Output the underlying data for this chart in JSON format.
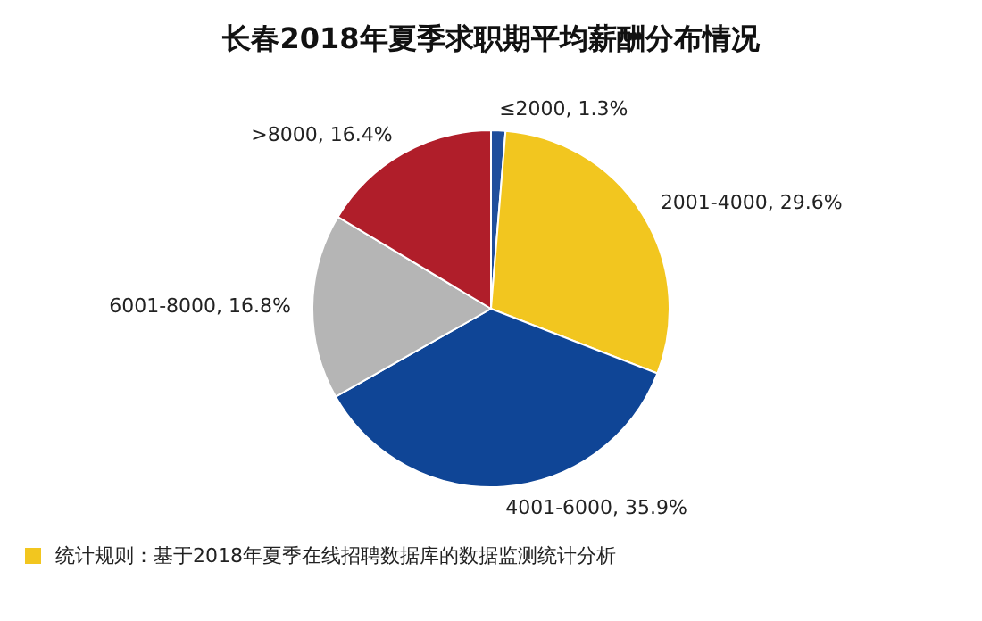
{
  "chart_data": {
    "type": "pie",
    "title": "长春2018年夏季求职期平均薪酬分布情况",
    "categories": [
      "≤2000",
      "2001-4000",
      "4001-6000",
      "6001-8000",
      ">8000"
    ],
    "values": [
      1.3,
      29.6,
      35.9,
      16.8,
      16.4
    ],
    "value_labels": [
      "1.3%",
      "29.6%",
      "35.9%",
      "16.8%",
      "16.4%"
    ],
    "colors": [
      "#1f4e9c",
      "#f2c61f",
      "#0f4596",
      "#b5b5b5",
      "#b01e2a"
    ],
    "annotations": [
      "统计规则：基于2018年夏季在线招聘数据库的数据监测统计分析"
    ],
    "legend": false
  }
}
